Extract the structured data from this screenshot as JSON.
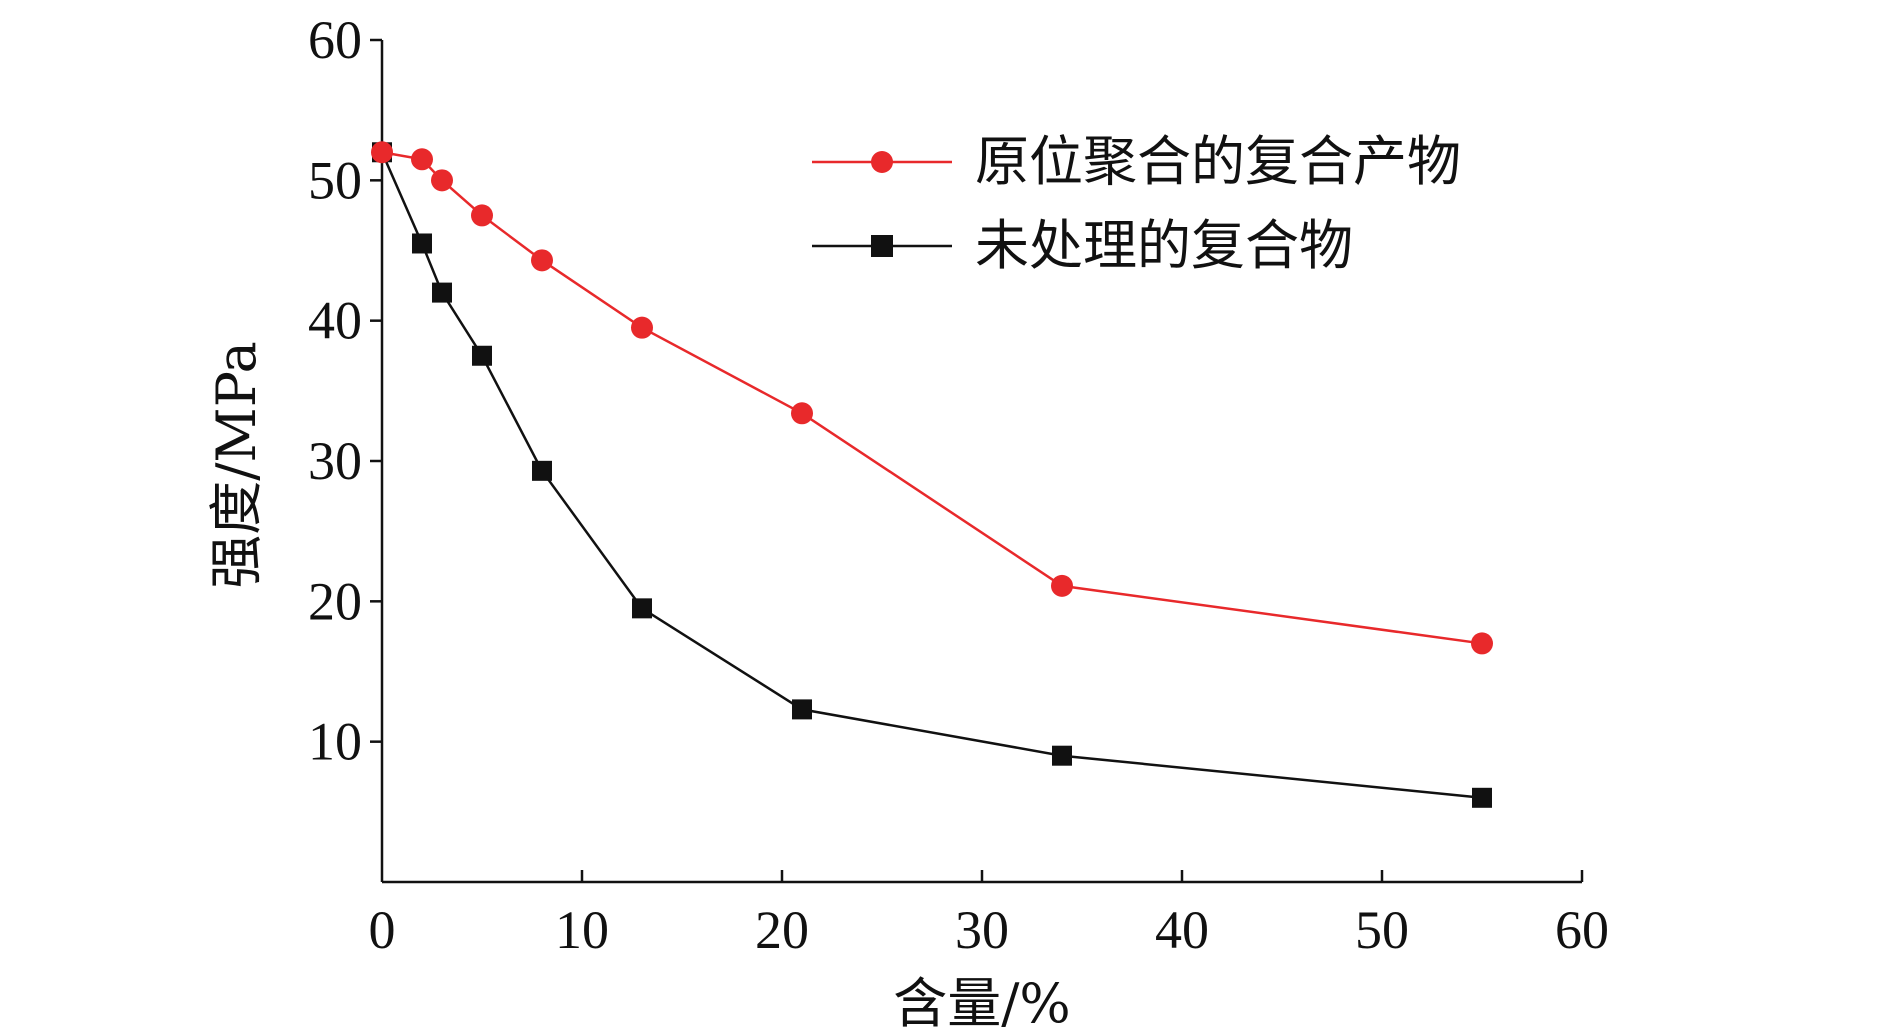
{
  "chart_data": {
    "type": "line",
    "title": "",
    "xlabel": "含量/%",
    "ylabel": "强度/MPa",
    "xlim": [
      0,
      60
    ],
    "ylim": [
      0,
      60
    ],
    "x_ticks": [
      0,
      10,
      20,
      30,
      40,
      50,
      60
    ],
    "y_ticks": [
      10,
      20,
      30,
      40,
      50,
      60
    ],
    "x_tick_labels": [
      "0",
      "10",
      "20",
      "30",
      "40",
      "50",
      "60"
    ],
    "y_tick_labels": [
      "10",
      "20",
      "30",
      "40",
      "50",
      "60"
    ],
    "grid": false,
    "legend_position": "top-right",
    "series": [
      {
        "name": "原位聚合的复合产物",
        "color": "#e8292b",
        "marker": "circle",
        "x": [
          0,
          2,
          3,
          5,
          8,
          13,
          21,
          34,
          55
        ],
        "y": [
          52,
          51.5,
          50,
          47.5,
          44.3,
          39.5,
          33.4,
          21.1,
          17
        ]
      },
      {
        "name": "未处理的复合物",
        "color": "#111111",
        "marker": "square",
        "x": [
          0,
          2,
          3,
          5,
          8,
          13,
          21,
          34,
          55
        ],
        "y": [
          52,
          45.5,
          42,
          37.5,
          29.3,
          19.5,
          12.3,
          9,
          6
        ]
      }
    ]
  }
}
